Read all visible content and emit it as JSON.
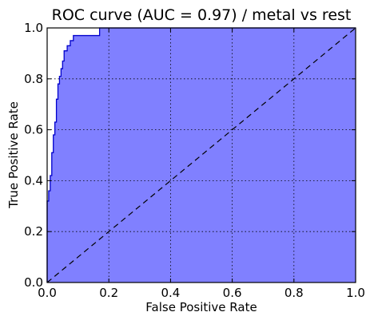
{
  "chart_data": {
    "type": "area",
    "title": "ROC curve (AUC = 0.97) / metal vs rest",
    "xlabel": "False Positive Rate",
    "ylabel": "True Positive Rate",
    "xlim": [
      0.0,
      1.0
    ],
    "ylim": [
      0.0,
      1.0
    ],
    "xticks": [
      "0.0",
      "0.2",
      "0.4",
      "0.6",
      "0.8",
      "1.0"
    ],
    "yticks": [
      "0.0",
      "0.2",
      "0.4",
      "0.6",
      "0.8",
      "1.0"
    ],
    "grid": true,
    "fill_color": "#8080ff",
    "line_color": "#0000cc",
    "diagonal_style": "dashed",
    "roc": {
      "x": [
        0.0,
        0.0,
        0.005,
        0.005,
        0.01,
        0.01,
        0.015,
        0.015,
        0.02,
        0.02,
        0.025,
        0.025,
        0.03,
        0.03,
        0.035,
        0.035,
        0.04,
        0.04,
        0.045,
        0.045,
        0.05,
        0.05,
        0.055,
        0.055,
        0.065,
        0.065,
        0.075,
        0.075,
        0.085,
        0.085,
        0.17,
        0.17,
        1.0
      ],
      "y": [
        0.0,
        0.32,
        0.32,
        0.36,
        0.36,
        0.42,
        0.42,
        0.51,
        0.51,
        0.58,
        0.58,
        0.63,
        0.63,
        0.72,
        0.72,
        0.78,
        0.78,
        0.81,
        0.81,
        0.84,
        0.84,
        0.87,
        0.87,
        0.91,
        0.91,
        0.93,
        0.93,
        0.95,
        0.95,
        0.97,
        0.97,
        1.0,
        1.0
      ]
    },
    "diagonal": {
      "x": [
        0.0,
        1.0
      ],
      "y": [
        0.0,
        1.0
      ]
    }
  }
}
